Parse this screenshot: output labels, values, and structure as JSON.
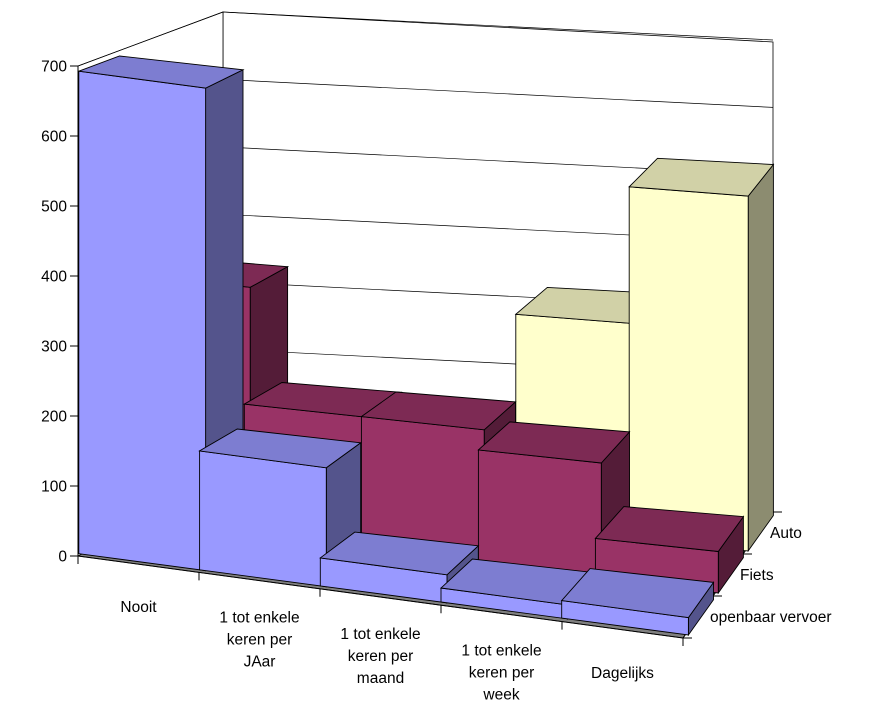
{
  "chart_data": {
    "type": "bar",
    "subtype": "3d-clustered-depth",
    "categories": [
      "Nooit",
      "1 tot enkele keren per JAar",
      "1 tot enkele keren per maand",
      "1 tot enkele keren per week",
      "Dagelijks"
    ],
    "category_lines": [
      [
        "Nooit"
      ],
      [
        "1 tot enkele",
        "keren per",
        "JAar"
      ],
      [
        "1 tot enkele",
        "keren per",
        "maand"
      ],
      [
        "1 tot enkele",
        "keren per",
        "week"
      ],
      [
        "Dagelijks"
      ]
    ],
    "series": [
      {
        "name": "openbaar vervoer",
        "values": [
          690,
          170,
          40,
          20,
          25
        ],
        "color": "#9999ff"
      },
      {
        "name": "Fiets",
        "values": [
          370,
          200,
          200,
          170,
          60
        ],
        "color": "#993366"
      },
      {
        "name": "Auto",
        "values": [
          10,
          10,
          50,
          320,
          520
        ],
        "color": "#ffffcc"
      }
    ],
    "ylim": [
      0,
      700
    ],
    "yticks": [
      0,
      100,
      200,
      300,
      400,
      500,
      600,
      700
    ],
    "grid": true,
    "floor_color": "#808080",
    "title": "",
    "xlabel": "",
    "ylabel": ""
  }
}
